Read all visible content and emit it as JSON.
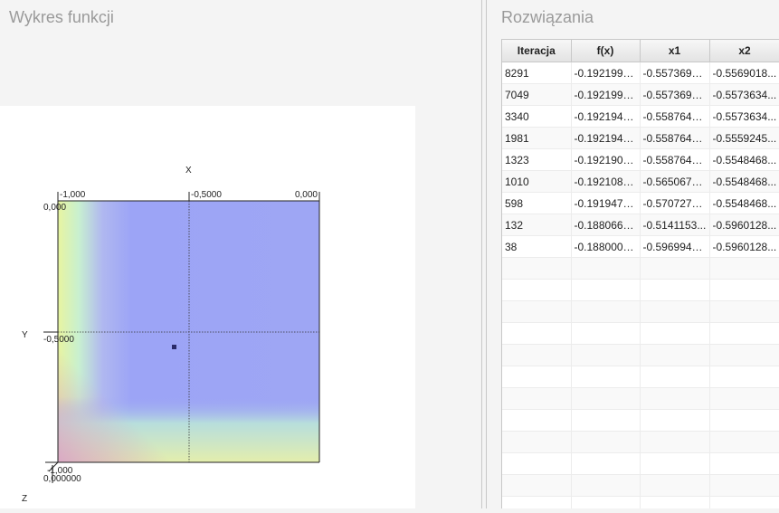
{
  "left_panel": {
    "title": "Wykres funkcji"
  },
  "right_panel": {
    "title": "Rozwiązania"
  },
  "plot": {
    "axis_names": {
      "x": "X",
      "y": "Y",
      "z": "Z"
    },
    "x_ticks": [
      "-1,000",
      "-0,5000",
      "0,000"
    ],
    "y_ticks": [
      "0,000",
      "-0,5000",
      "-1,000"
    ],
    "z_tick": "0,000000",
    "marker_point": {
      "x1": -0.5573698,
      "x2": -0.5569018
    },
    "colors": {
      "background": "#a0a8f4",
      "marker": "#2a2a6a"
    }
  },
  "table": {
    "columns": [
      "Iteracja",
      "f(x)",
      "x1",
      "x2"
    ],
    "rows": [
      [
        "8291",
        "-0.1921995...",
        "-0.5573698...",
        "-0.5569018..."
      ],
      [
        "7049",
        "-0.1921991...",
        "-0.5573698...",
        "-0.5573634..."
      ],
      [
        "3340",
        "-0.1921946...",
        "-0.5587643...",
        "-0.5573634..."
      ],
      [
        "1981",
        "-0.1921941...",
        "-0.5587643...",
        "-0.5559245..."
      ],
      [
        "1323",
        "-0.1921904...",
        "-0.5587643...",
        "-0.5548468..."
      ],
      [
        "1010",
        "-0.1921088...",
        "-0.5650678...",
        "-0.5548468..."
      ],
      [
        "598",
        "-0.1919479...",
        "-0.5707275...",
        "-0.5548468..."
      ],
      [
        "132",
        "-0.1880669...",
        "-0.5141153...",
        "-0.5960128..."
      ],
      [
        "38",
        "-0.1880009...",
        "-0.5969945...",
        "-0.5960128..."
      ]
    ]
  }
}
